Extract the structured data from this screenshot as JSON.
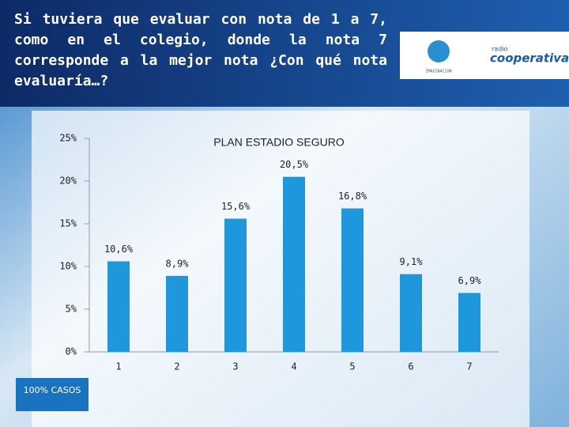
{
  "header": {
    "question": "Si tuviera que evaluar con nota de 1 a 7, como en el colegio, donde la nota 7 corresponde a la mejor nota ¿Con qué nota evaluaría…?",
    "logo_top": "radio",
    "logo_main": "cooperativa",
    "logo_left": "IMAGINACION"
  },
  "note": "100% CASOS",
  "chart_data": {
    "type": "bar",
    "title": "PLAN ESTADIO SEGURO",
    "categories": [
      "1",
      "2",
      "3",
      "4",
      "5",
      "6",
      "7"
    ],
    "values": [
      10.6,
      8.9,
      15.6,
      20.5,
      16.8,
      9.1,
      6.9
    ],
    "value_labels": [
      "10,6%",
      "8,9%",
      "15,6%",
      "20,5%",
      "16,8%",
      "9,1%",
      "6,9%"
    ],
    "color": "#1f97dc",
    "ylim": [
      0,
      25
    ],
    "yticks": [
      {
        "value": 0,
        "label": "0%"
      },
      {
        "value": 5,
        "label": "5%"
      },
      {
        "value": 10,
        "label": "10%"
      },
      {
        "value": 15,
        "label": "15%"
      },
      {
        "value": 20,
        "label": "20%"
      },
      {
        "value": 25,
        "label": "25%"
      }
    ],
    "grid": false
  }
}
